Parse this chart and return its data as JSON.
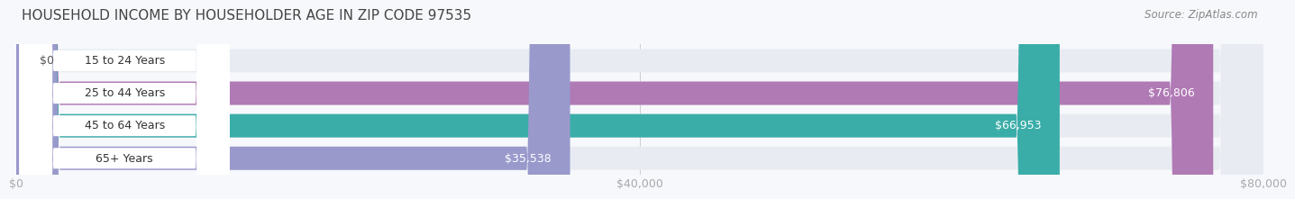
{
  "title": "HOUSEHOLD INCOME BY HOUSEHOLDER AGE IN ZIP CODE 97535",
  "source": "Source: ZipAtlas.com",
  "categories": [
    "15 to 24 Years",
    "25 to 44 Years",
    "45 to 64 Years",
    "65+ Years"
  ],
  "values": [
    0,
    76806,
    66953,
    35538
  ],
  "bar_colors": [
    "#aec6e8",
    "#b07ab5",
    "#3aada8",
    "#9999cc"
  ],
  "bar_bg_color": "#e8ecf2",
  "label_bg_color": "#ffffff",
  "value_labels": [
    "$0",
    "$76,806",
    "$66,953",
    "$35,538"
  ],
  "xlim": [
    0,
    80000
  ],
  "xticks": [
    0,
    40000,
    80000
  ],
  "xtick_labels": [
    "$0",
    "$40,000",
    "$80,000"
  ],
  "figsize": [
    14.06,
    2.33
  ],
  "title_fontsize": 11,
  "label_fontsize": 9,
  "value_fontsize": 9,
  "source_fontsize": 8.5,
  "bar_height": 0.72,
  "title_color": "#444444",
  "source_color": "#888888",
  "label_color": "#333333",
  "value_color_inside": "#ffffff",
  "value_color_outside": "#555555",
  "tick_color": "#aaaaaa",
  "grid_color": "#cccccc",
  "fig_bg": "#f7f8fb"
}
